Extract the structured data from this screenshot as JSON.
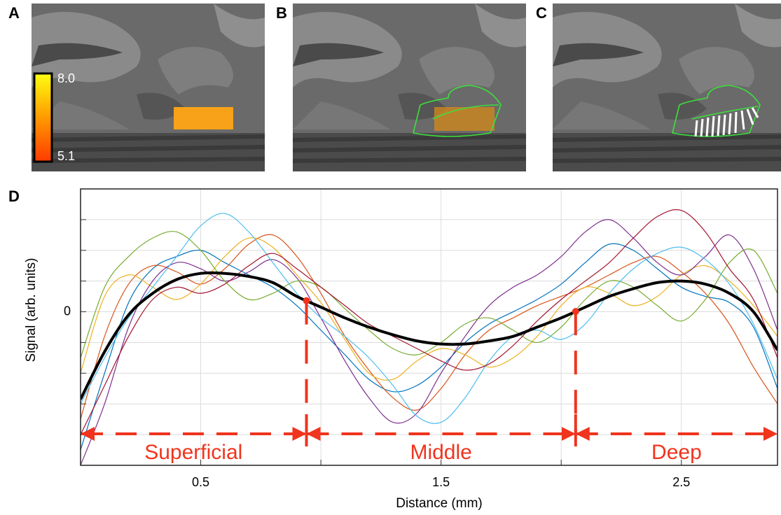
{
  "panels": [
    {
      "label": "A",
      "colorbar": {
        "max": "8.0",
        "min": "5.1"
      }
    },
    {
      "label": "B"
    },
    {
      "label": "C"
    }
  ],
  "chart_data": {
    "type": "line",
    "panel_label": "D",
    "xlabel": "Distance (mm)",
    "ylabel": "Signal (arb. units)",
    "xlim": [
      0,
      2.9
    ],
    "ylim": [
      -5,
      4
    ],
    "xticks": [
      0.5,
      1.5,
      2.5
    ],
    "xgrid": [
      0.5,
      1,
      1.5,
      2,
      2.5
    ],
    "yticks": [
      0
    ],
    "ygrid": [
      -4,
      -3,
      -2,
      -1,
      0,
      1,
      2,
      3
    ],
    "grid": true,
    "x": [
      0,
      0.1,
      0.2,
      0.3,
      0.4,
      0.5,
      0.6,
      0.7,
      0.8,
      0.9,
      1,
      1.1,
      1.2,
      1.3,
      1.4,
      1.5,
      1.6,
      1.7,
      1.8,
      1.9,
      2,
      2.1,
      2.2,
      2.3,
      2.4,
      2.5,
      2.6,
      2.7,
      2.8,
      2.9
    ],
    "series": [
      {
        "color": "#0072bd",
        "values": [
          -4.5,
          -2,
          0.3,
          1.4,
          1.8,
          2.0,
          1.6,
          1.2,
          0.8,
          0.2,
          -0.6,
          -1.4,
          -2.2,
          -2.6,
          -2.4,
          -1.8,
          -1.0,
          -0.4,
          0,
          0.4,
          0.9,
          1.6,
          2.2,
          2.0,
          1.4,
          0.8,
          0.5,
          0.3,
          -0.5,
          -2.5
        ]
      },
      {
        "color": "#d95319",
        "values": [
          -3.5,
          -0.8,
          0.9,
          1.5,
          1.3,
          0.9,
          1.4,
          2.2,
          2.5,
          1.8,
          0.6,
          -0.8,
          -1.9,
          -2.8,
          -3.2,
          -2.5,
          -1.4,
          -0.6,
          -0.2,
          0.2,
          0.5,
          0.8,
          1.2,
          1.6,
          1.8,
          1.3,
          0.6,
          -0.4,
          -1.8,
          -3.0
        ]
      },
      {
        "color": "#edb120",
        "values": [
          -2,
          0.5,
          1.2,
          0.8,
          0.4,
          0.9,
          1.8,
          2.4,
          2.1,
          1.2,
          0.3,
          -0.9,
          -2.0,
          -2.2,
          -1.6,
          -1.2,
          -1.4,
          -1.8,
          -1.5,
          -0.8,
          0.2,
          0.8,
          0.6,
          0.2,
          0.5,
          1.2,
          1.5,
          1.0,
          0.2,
          -0.8
        ]
      },
      {
        "color": "#7e2f8e",
        "values": [
          -5,
          -3,
          -0.5,
          1.0,
          1.6,
          1.4,
          1.0,
          1.3,
          1.7,
          1.1,
          -0.2,
          -1.6,
          -2.8,
          -3.6,
          -3.3,
          -2.0,
          -0.8,
          0.2,
          0.8,
          1.2,
          1.8,
          2.6,
          3.0,
          2.4,
          1.6,
          1.2,
          1.8,
          2.5,
          1.4,
          -0.6
        ]
      },
      {
        "color": "#77ac30",
        "values": [
          -1.5,
          0.8,
          1.8,
          2.4,
          2.6,
          2.0,
          1.0,
          0.4,
          0.6,
          1.0,
          0.8,
          0.1,
          -0.6,
          -1.2,
          -1.4,
          -1.0,
          -0.4,
          -0.2,
          -0.6,
          -1.0,
          -0.5,
          0.4,
          1.0,
          0.8,
          0.2,
          -0.3,
          0.4,
          1.6,
          2.0,
          0.6
        ]
      },
      {
        "color": "#4dbeee",
        "values": [
          -3,
          -1.5,
          -0.2,
          0.8,
          1.8,
          2.8,
          3.2,
          2.6,
          1.6,
          0.6,
          -0.2,
          -0.8,
          -1.5,
          -2.4,
          -3.4,
          -3.6,
          -2.8,
          -1.6,
          -0.8,
          -0.6,
          -0.9,
          -0.4,
          0.6,
          1.4,
          1.9,
          2.1,
          1.7,
          0.9,
          -0.4,
          -2.2
        ]
      },
      {
        "color": "#a2142f",
        "values": [
          -4,
          -2.4,
          -0.8,
          0.4,
          0.8,
          0.6,
          0.9,
          1.5,
          1.9,
          1.4,
          0.8,
          0.2,
          -0.4,
          -0.8,
          -1.2,
          -1.6,
          -1.9,
          -1.7,
          -1.1,
          -0.3,
          0.4,
          1.0,
          1.6,
          2.4,
          3.1,
          3.3,
          2.6,
          1.4,
          0.4,
          -1.5
        ]
      },
      {
        "color": "#000000",
        "width": 4,
        "values": [
          -2.85,
          -1.3,
          -0.1,
          0.6,
          1.05,
          1.25,
          1.25,
          1.15,
          0.95,
          0.5,
          0.15,
          -0.2,
          -0.5,
          -0.75,
          -0.95,
          -1.05,
          -1.05,
          -0.95,
          -0.8,
          -0.5,
          -0.2,
          0.15,
          0.5,
          0.75,
          0.95,
          1.0,
          0.9,
          0.6,
          0,
          -1.25
        ]
      }
    ],
    "boundaries": [
      0.94,
      2.06
    ],
    "regions": [
      "Superficial",
      "Middle",
      "Deep"
    ],
    "region_color": "#f0341e"
  }
}
